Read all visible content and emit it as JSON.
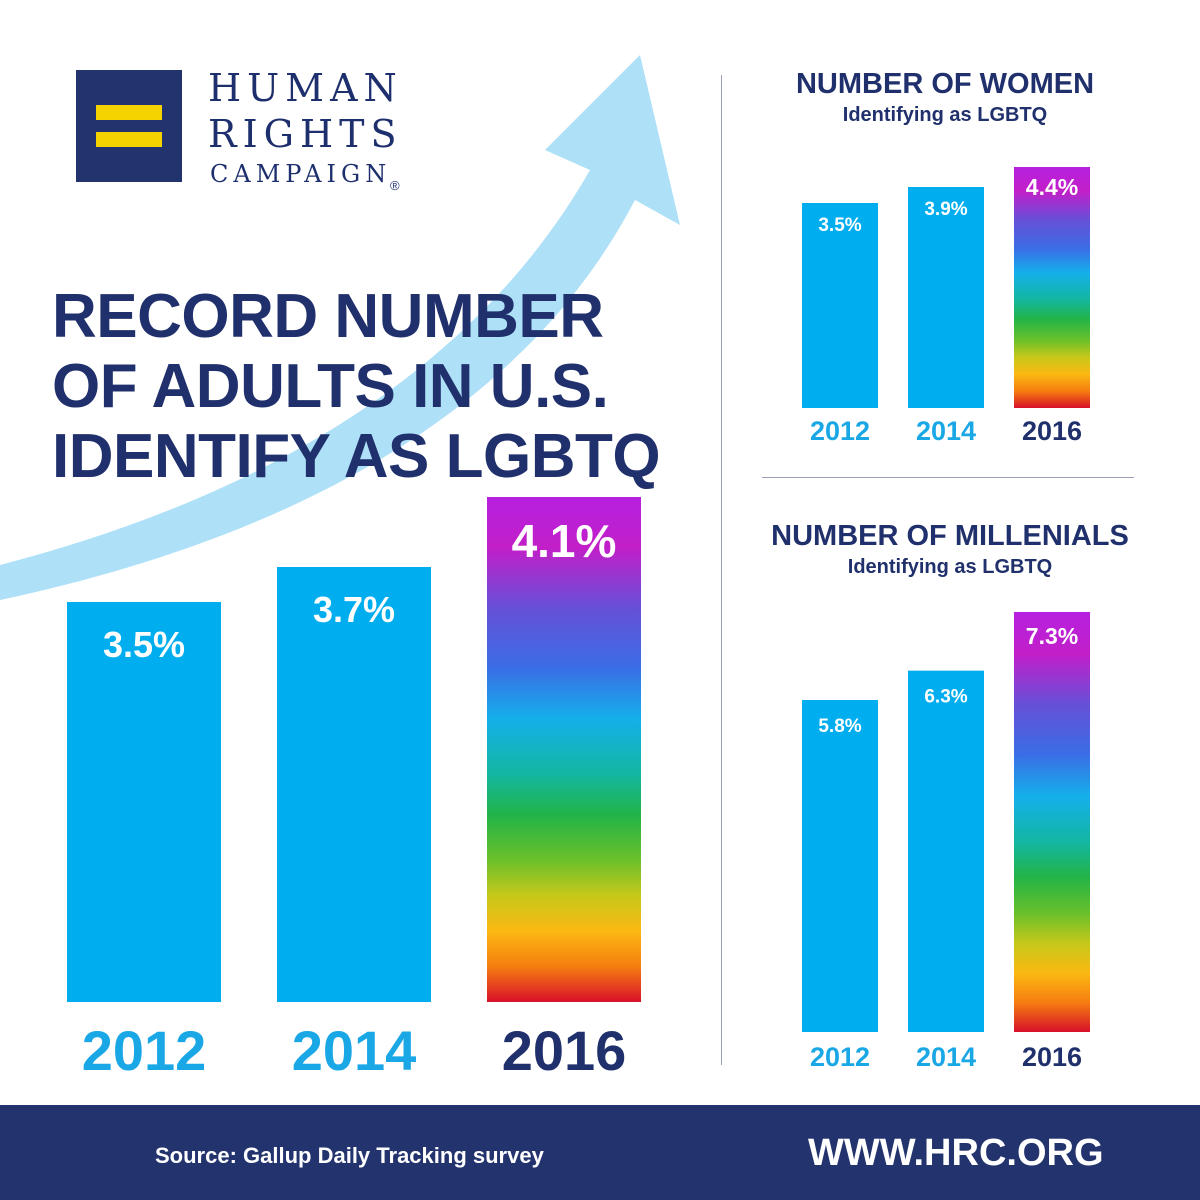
{
  "brand": {
    "logo_line1": "HUMAN",
    "logo_line2": "RIGHTS",
    "logo_line3": "CAMPAIGN",
    "registered_mark": "®",
    "logo_bg_color": "#23336e",
    "logo_bar_color": "#f5d300"
  },
  "headline": {
    "line1": "RECORD NUMBER",
    "line2": "OF ADULTS IN U.S.",
    "line3": "IDENTIFY AS LGBTQ"
  },
  "colors": {
    "bar_blue": "#00aeef",
    "year_blue": "#1aa7e6",
    "navy": "#20306c",
    "arrow": "#aee0f8"
  },
  "footer": {
    "source": "Source: Gallup Daily Tracking survey",
    "url": "WWW.HRC.ORG"
  },
  "chart_data": [
    {
      "type": "bar",
      "title": "RECORD NUMBER OF ADULTS IN U.S. IDENTIFY AS LGBTQ",
      "categories": [
        "2012",
        "2014",
        "2016"
      ],
      "values": [
        3.5,
        3.7,
        4.1
      ],
      "value_labels": [
        "3.5%",
        "3.7%",
        "4.1%"
      ],
      "highlight": "2016"
    },
    {
      "type": "bar",
      "title": "NUMBER OF WOMEN",
      "subtitle": "Identifying as LGBTQ",
      "categories": [
        "2012",
        "2014",
        "2016"
      ],
      "values": [
        3.5,
        3.9,
        4.4
      ],
      "value_labels": [
        "3.5%",
        "3.9%",
        "4.4%"
      ],
      "highlight": "2016"
    },
    {
      "type": "bar",
      "title": "NUMBER OF MILLENIALS",
      "subtitle": "Identifying as LGBTQ",
      "categories": [
        "2012",
        "2014",
        "2016"
      ],
      "values": [
        5.8,
        6.3,
        7.3
      ],
      "value_labels": [
        "5.8%",
        "6.3%",
        "7.3%"
      ],
      "highlight": "2016"
    }
  ]
}
